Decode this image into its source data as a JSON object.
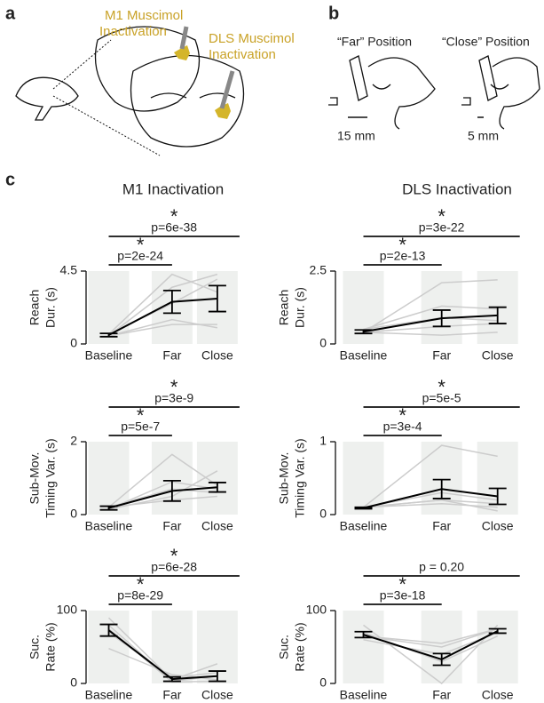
{
  "panel_labels": [
    "a",
    "b",
    "c"
  ],
  "diagram_a": {
    "m1_label": [
      "M1 Muscimol",
      "Inactivation"
    ],
    "dls_label": [
      "DLS Muscimol",
      "Inactivation"
    ]
  },
  "diagram_b": {
    "far": "“Far” Position",
    "close": "“Close” Position",
    "far_scale": "15 mm",
    "close_scale": "5 mm"
  },
  "column_titles": [
    {
      "text": "M1 Inactivation",
      "color": "#e8452c"
    },
    {
      "text": "DLS Inactivation",
      "color": "#4a3c96"
    }
  ],
  "chart_data": [
    {
      "type": "line",
      "ylabel": [
        "Reach",
        "Dur. (s)"
      ],
      "ylabel_color": "#000000",
      "categories": [
        "Baseline",
        "Far",
        "Close"
      ],
      "ylim": [
        0,
        4.5
      ],
      "yticks": [
        0,
        4.5
      ],
      "values": [
        0.55,
        2.6,
        2.8
      ],
      "errors": [
        0.1,
        0.7,
        0.8
      ],
      "color": "#000000",
      "individuals": {
        "color": "#cccccc",
        "series": [
          [
            0.5,
            3.5,
            4.3
          ],
          [
            0.6,
            4.3,
            3.2
          ],
          [
            0.5,
            1.5,
            1.0
          ],
          [
            0.6,
            2.5,
            4.0
          ],
          [
            0.5,
            1.2,
            1.2
          ]
        ]
      },
      "comparisons": [
        {
          "star": "*",
          "label": "p=2e-24"
        },
        {
          "star": "*",
          "label": "p=6e-38"
        }
      ]
    },
    {
      "type": "line",
      "ylabel": [
        "Reach",
        "Dur. (s)"
      ],
      "ylabel_color": "#000000",
      "categories": [
        "Baseline",
        "Far",
        "Close"
      ],
      "ylim": [
        0,
        2.5
      ],
      "yticks": [
        0,
        2.5
      ],
      "values": [
        0.42,
        0.88,
        0.98
      ],
      "errors": [
        0.06,
        0.28,
        0.28
      ],
      "color": "#000000",
      "individuals": {
        "color": "#cccccc",
        "series": [
          [
            0.4,
            2.1,
            2.2
          ],
          [
            0.5,
            1.3,
            1.2
          ],
          [
            0.4,
            0.6,
            0.7
          ],
          [
            0.4,
            0.3,
            0.4
          ],
          [
            0.5,
            0.9,
            0.8
          ]
        ]
      },
      "comparisons": [
        {
          "star": "*",
          "label": "p=2e-13"
        },
        {
          "star": "*",
          "label": "p=3e-22"
        }
      ]
    },
    {
      "type": "line",
      "ylabel": [
        "Sub-Mov.",
        "Timing Var. (s)"
      ],
      "ylabel_color": "#000000",
      "categories": [
        "Baseline",
        "Far",
        "Close"
      ],
      "ylim": [
        0,
        2
      ],
      "yticks": [
        0,
        2
      ],
      "values": [
        0.18,
        0.65,
        0.75
      ],
      "errors": [
        0.05,
        0.28,
        0.13
      ],
      "color": "#000000",
      "individuals": {
        "color": "#cccccc",
        "series": [
          [
            0.2,
            1.65,
            0.8
          ],
          [
            0.15,
            0.5,
            1.2
          ],
          [
            0.2,
            0.4,
            0.5
          ],
          [
            0.2,
            0.7,
            0.6
          ],
          [
            0.15,
            0.9,
            0.7
          ]
        ]
      },
      "comparisons": [
        {
          "star": "*",
          "label": "p=5e-7"
        },
        {
          "star": "*",
          "label": "p=3e-9"
        }
      ]
    },
    {
      "type": "line",
      "ylabel": [
        "Sub-Mov.",
        "Timing Var. (s)"
      ],
      "ylabel_color": "#000000",
      "categories": [
        "Baseline",
        "Far",
        "Close"
      ],
      "ylim": [
        0,
        1
      ],
      "yticks": [
        0,
        1
      ],
      "values": [
        0.09,
        0.35,
        0.25
      ],
      "errors": [
        0.01,
        0.13,
        0.11
      ],
      "color": "#000000",
      "individuals": {
        "color": "#cccccc",
        "series": [
          [
            0.1,
            0.95,
            0.8
          ],
          [
            0.1,
            0.3,
            0.2
          ],
          [
            0.1,
            0.15,
            0.1
          ],
          [
            0.1,
            0.2,
            0.15
          ],
          [
            0.1,
            0.2,
            0.05
          ]
        ]
      },
      "comparisons": [
        {
          "star": "*",
          "label": "p=3e-4"
        },
        {
          "star": "*",
          "label": "p=5e-5"
        }
      ]
    },
    {
      "type": "line",
      "ylabel": [
        "Suc.",
        "Rate (%)"
      ],
      "ylabel_color": "#1a9e3a",
      "categories": [
        "Baseline",
        "Far",
        "Close"
      ],
      "ylim": [
        0,
        100
      ],
      "yticks": [
        0,
        100
      ],
      "values": [
        73,
        6,
        10
      ],
      "errors": [
        8,
        3,
        7
      ],
      "color": "#000000",
      "individuals": {
        "color": "#cccccc",
        "series": [
          [
            90,
            5,
            27
          ],
          [
            80,
            3,
            10
          ],
          [
            48,
            12,
            5
          ],
          [
            70,
            8,
            15
          ],
          [
            75,
            2,
            3
          ]
        ]
      },
      "comparisons": [
        {
          "star": "*",
          "label": "p=8e-29"
        },
        {
          "star": "*",
          "label": "p=6e-28"
        }
      ]
    },
    {
      "type": "line",
      "ylabel": [
        "Suc.",
        "Rate (%)"
      ],
      "ylabel_color": "#1a9e3a",
      "categories": [
        "Baseline",
        "Far",
        "Close"
      ],
      "ylim": [
        0,
        100
      ],
      "yticks": [
        0,
        100
      ],
      "values": [
        67,
        33,
        72
      ],
      "errors": [
        4,
        8,
        3
      ],
      "color": "#000000",
      "individuals": {
        "color": "#cccccc",
        "series": [
          [
            80,
            0,
            80
          ],
          [
            65,
            55,
            75
          ],
          [
            60,
            40,
            70
          ],
          [
            70,
            30,
            65
          ],
          [
            65,
            50,
            75
          ]
        ]
      },
      "comparisons": [
        {
          "star": "*",
          "label": "p=3e-18"
        },
        {
          "label": "p = 0.20"
        }
      ]
    }
  ]
}
